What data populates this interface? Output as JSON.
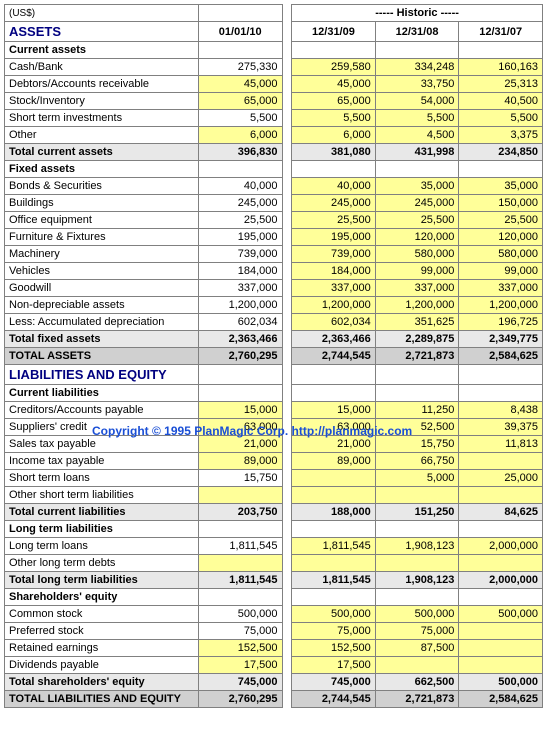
{
  "currency_label": "(US$)",
  "historic_label": "----- Historic -----",
  "dates": [
    "01/01/10",
    "12/31/09",
    "12/31/08",
    "12/31/07"
  ],
  "watermark": "Copyright © 1995 PlanMagic Corp. http://planmagic.com",
  "colors": {
    "section_header": "#000080",
    "input_bg": "#ffff99",
    "subtotal_bg": "#e8e8e8",
    "grandtotal_bg": "#d0d0d0",
    "border": "#808080",
    "watermark": "#1a4fd6"
  },
  "sections": [
    {
      "title": "ASSETS",
      "groups": [
        {
          "heading": "Current assets",
          "rows": [
            {
              "label": "Cash/Bank",
              "vals": [
                "275,330",
                "259,580",
                "334,248",
                "160,163"
              ],
              "style": [
                "",
                "y",
                "y",
                "y"
              ]
            },
            {
              "label": "Debtors/Accounts receivable",
              "vals": [
                "45,000",
                "45,000",
                "33,750",
                "25,313"
              ],
              "style": [
                "y",
                "y",
                "y",
                "y"
              ]
            },
            {
              "label": "Stock/Inventory",
              "vals": [
                "65,000",
                "65,000",
                "54,000",
                "40,500"
              ],
              "style": [
                "y",
                "y",
                "y",
                "y"
              ]
            },
            {
              "label": "Short term investments",
              "vals": [
                "5,500",
                "5,500",
                "5,500",
                "5,500"
              ],
              "style": [
                "",
                "y",
                "y",
                "y"
              ]
            },
            {
              "label": "Other",
              "vals": [
                "6,000",
                "6,000",
                "4,500",
                "3,375"
              ],
              "style": [
                "y",
                "y",
                "y",
                "y"
              ]
            }
          ],
          "subtotal": {
            "label": "Total current assets",
            "vals": [
              "396,830",
              "381,080",
              "431,998",
              "234,850"
            ],
            "class": "subtotal"
          }
        },
        {
          "heading": "Fixed assets",
          "rows": [
            {
              "label": "Bonds & Securities",
              "vals": [
                "40,000",
                "40,000",
                "35,000",
                "35,000"
              ],
              "style": [
                "",
                "y",
                "y",
                "y"
              ]
            },
            {
              "label": "Buildings",
              "vals": [
                "245,000",
                "245,000",
                "245,000",
                "150,000"
              ],
              "style": [
                "",
                "y",
                "y",
                "y"
              ]
            },
            {
              "label": "Office equipment",
              "vals": [
                "25,500",
                "25,500",
                "25,500",
                "25,500"
              ],
              "style": [
                "",
                "y",
                "y",
                "y"
              ]
            },
            {
              "label": "Furniture & Fixtures",
              "vals": [
                "195,000",
                "195,000",
                "120,000",
                "120,000"
              ],
              "style": [
                "",
                "y",
                "y",
                "y"
              ]
            },
            {
              "label": "Machinery",
              "vals": [
                "739,000",
                "739,000",
                "580,000",
                "580,000"
              ],
              "style": [
                "",
                "y",
                "y",
                "y"
              ]
            },
            {
              "label": "Vehicles",
              "vals": [
                "184,000",
                "184,000",
                "99,000",
                "99,000"
              ],
              "style": [
                "",
                "y",
                "y",
                "y"
              ]
            },
            {
              "label": "Goodwill",
              "vals": [
                "337,000",
                "337,000",
                "337,000",
                "337,000"
              ],
              "style": [
                "",
                "y",
                "y",
                "y"
              ]
            },
            {
              "label": "Non-depreciable assets",
              "vals": [
                "1,200,000",
                "1,200,000",
                "1,200,000",
                "1,200,000"
              ],
              "style": [
                "",
                "y",
                "y",
                "y"
              ]
            },
            {
              "label": "Less: Accumulated depreciation",
              "vals": [
                "602,034",
                "602,034",
                "351,625",
                "196,725"
              ],
              "style": [
                "",
                "y",
                "y",
                "y"
              ]
            }
          ],
          "subtotal": {
            "label": "Total fixed assets",
            "vals": [
              "2,363,466",
              "2,363,466",
              "2,289,875",
              "2,349,775"
            ],
            "class": "subtotal"
          }
        }
      ],
      "total": {
        "label": "TOTAL ASSETS",
        "vals": [
          "2,760,295",
          "2,744,545",
          "2,721,873",
          "2,584,625"
        ],
        "class": "grandtotal"
      }
    },
    {
      "title": "LIABILITIES AND EQUITY",
      "groups": [
        {
          "heading": "Current liabilities",
          "rows": [
            {
              "label": "Creditors/Accounts payable",
              "vals": [
                "15,000",
                "15,000",
                "11,250",
                "8,438"
              ],
              "style": [
                "y",
                "y",
                "y",
                "y"
              ]
            },
            {
              "label": "Suppliers' credit",
              "vals": [
                "63,000",
                "63,000",
                "52,500",
                "39,375"
              ],
              "style": [
                "y",
                "y",
                "y",
                "y"
              ]
            },
            {
              "label": "Sales tax payable",
              "vals": [
                "21,000",
                "21,000",
                "15,750",
                "11,813"
              ],
              "style": [
                "y",
                "y",
                "y",
                "y"
              ]
            },
            {
              "label": "Income tax payable",
              "vals": [
                "89,000",
                "89,000",
                "66,750",
                ""
              ],
              "style": [
                "y",
                "y",
                "y",
                "y"
              ]
            },
            {
              "label": "Short term loans",
              "vals": [
                "15,750",
                "",
                "5,000",
                "25,000"
              ],
              "style": [
                "",
                "y",
                "y",
                "y"
              ]
            },
            {
              "label": "Other short term liabilities",
              "vals": [
                "",
                "",
                "",
                ""
              ],
              "style": [
                "y",
                "y",
                "y",
                "y"
              ]
            }
          ],
          "subtotal": {
            "label": "Total current liabilities",
            "vals": [
              "203,750",
              "188,000",
              "151,250",
              "84,625"
            ],
            "class": "subtotal"
          }
        },
        {
          "heading": "Long term liabilities",
          "rows": [
            {
              "label": "Long term loans",
              "vals": [
                "1,811,545",
                "1,811,545",
                "1,908,123",
                "2,000,000"
              ],
              "style": [
                "",
                "y",
                "y",
                "y"
              ]
            },
            {
              "label": "Other long term debts",
              "vals": [
                "",
                "",
                "",
                ""
              ],
              "style": [
                "y",
                "y",
                "y",
                "y"
              ]
            }
          ],
          "subtotal": {
            "label": "Total long term liabilities",
            "vals": [
              "1,811,545",
              "1,811,545",
              "1,908,123",
              "2,000,000"
            ],
            "class": "subtotal"
          }
        },
        {
          "heading": "Shareholders' equity",
          "rows": [
            {
              "label": "Common stock",
              "vals": [
                "500,000",
                "500,000",
                "500,000",
                "500,000"
              ],
              "style": [
                "",
                "y",
                "y",
                "y"
              ]
            },
            {
              "label": "Preferred stock",
              "vals": [
                "75,000",
                "75,000",
                "75,000",
                ""
              ],
              "style": [
                "",
                "y",
                "y",
                "y"
              ]
            },
            {
              "label": "Retained earnings",
              "vals": [
                "152,500",
                "152,500",
                "87,500",
                ""
              ],
              "style": [
                "y",
                "y",
                "y",
                "y"
              ]
            },
            {
              "label": "Dividends payable",
              "vals": [
                "17,500",
                "17,500",
                "",
                ""
              ],
              "style": [
                "y",
                "y",
                "y",
                "y"
              ]
            }
          ],
          "subtotal": {
            "label": "Total shareholders' equity",
            "vals": [
              "745,000",
              "745,000",
              "662,500",
              "500,000"
            ],
            "class": "subtotal"
          }
        }
      ],
      "total": {
        "label": "TOTAL LIABILITIES AND EQUITY",
        "vals": [
          "2,760,295",
          "2,744,545",
          "2,721,873",
          "2,584,625"
        ],
        "class": "grandtotal"
      }
    }
  ]
}
